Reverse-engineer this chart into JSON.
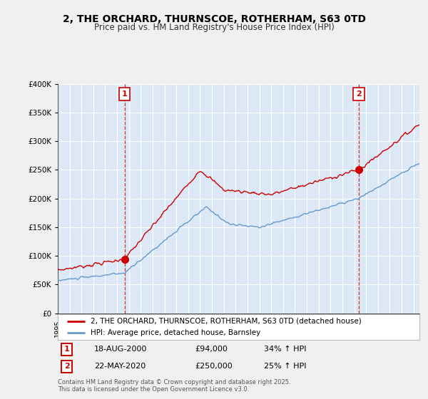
{
  "title": "2, THE ORCHARD, THURNSCOE, ROTHERHAM, S63 0TD",
  "subtitle": "Price paid vs. HM Land Registry's House Price Index (HPI)",
  "legend_line1": "2, THE ORCHARD, THURNSCOE, ROTHERHAM, S63 0TD (detached house)",
  "legend_line2": "HPI: Average price, detached house, Barnsley",
  "point1_label": "1",
  "point1_date": "18-AUG-2000",
  "point1_price": "£94,000",
  "point1_hpi": "34% ↑ HPI",
  "point1_x": 2000.63,
  "point1_y": 94000,
  "point2_label": "2",
  "point2_date": "22-MAY-2020",
  "point2_price": "£250,000",
  "point2_hpi": "25% ↑ HPI",
  "point2_x": 2020.39,
  "point2_y": 250000,
  "footer": "Contains HM Land Registry data © Crown copyright and database right 2025.\nThis data is licensed under the Open Government Licence v3.0.",
  "ylim": [
    0,
    400000
  ],
  "xlim_start": 1995,
  "xlim_end": 2025.5,
  "red_color": "#cc0000",
  "blue_color": "#6699cc",
  "background_color": "#f0f0f0",
  "plot_bg": "#dce8f5",
  "grid_color": "#ffffff",
  "box_color": "#cc0000"
}
